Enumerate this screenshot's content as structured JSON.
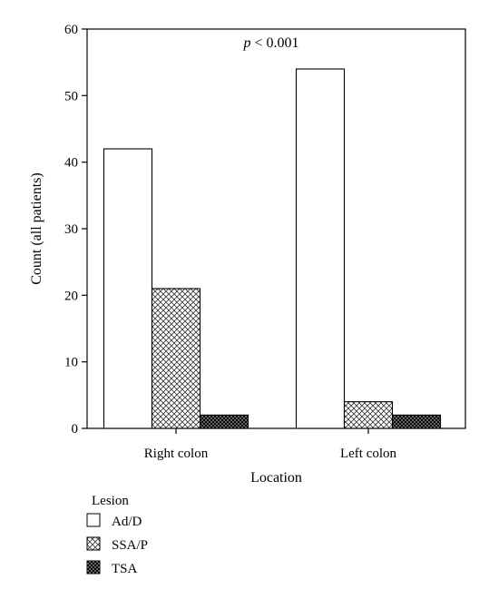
{
  "chart_data": {
    "type": "bar",
    "annotation": {
      "italic": "p",
      "rest": " < 0.001"
    },
    "xlabel": "Location",
    "ylabel": "Count (all patients)",
    "ylim": [
      0,
      60
    ],
    "yticks": [
      0,
      10,
      20,
      30,
      40,
      50,
      60
    ],
    "categories": [
      "Right colon",
      "Left colon"
    ],
    "series": [
      {
        "name": "Ad/D",
        "values": [
          42,
          54
        ],
        "pattern": "white"
      },
      {
        "name": "SSA/P",
        "values": [
          21,
          4
        ],
        "pattern": "crosshatch"
      },
      {
        "name": "TSA",
        "values": [
          2,
          2
        ],
        "pattern": "black-dots"
      }
    ],
    "legend": {
      "title": "Lesion",
      "placement": "bottom-left"
    },
    "grid": false
  }
}
